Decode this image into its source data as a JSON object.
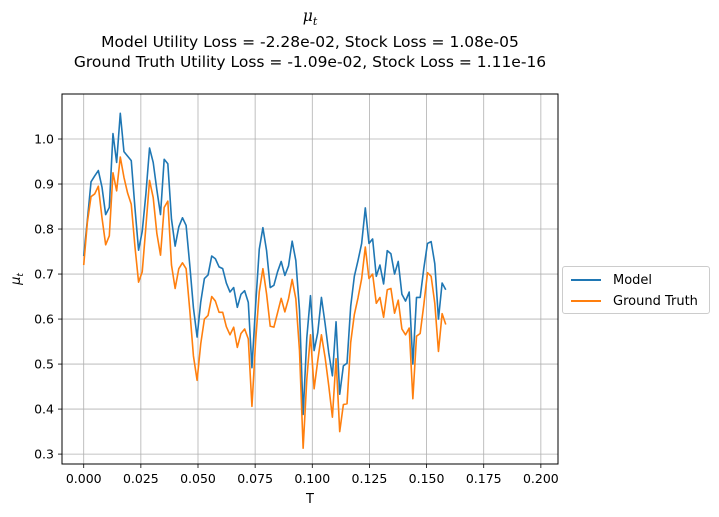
{
  "chart_data": {
    "type": "line",
    "title": {
      "symbol_base": "μ",
      "symbol_sub": "t",
      "line2": "Model Utility Loss = -2.28e-02, Stock Loss = 1.08e-05",
      "line3": "Ground Truth Utility Loss = -1.09e-02, Stock Loss = 1.11e-16"
    },
    "xlabel": "T",
    "ylabel": "μ_t",
    "ylabel_base": "μ",
    "ylabel_sub": "t",
    "xlim": [
      -0.0095,
      0.2075
    ],
    "ylim": [
      0.278,
      1.1
    ],
    "xticks": [
      0.0,
      0.025,
      0.05,
      0.075,
      0.1,
      0.125,
      0.15,
      0.175,
      0.2
    ],
    "xtick_labels": [
      "0.000",
      "0.025",
      "0.050",
      "0.075",
      "0.100",
      "0.125",
      "0.150",
      "0.175",
      "0.200"
    ],
    "yticks": [
      0.3,
      0.4,
      0.5,
      0.6,
      0.7,
      0.8,
      0.9,
      1.0
    ],
    "ytick_labels": [
      "0.3",
      "0.4",
      "0.5",
      "0.6",
      "0.7",
      "0.8",
      "0.9",
      "1.0"
    ],
    "grid": true,
    "legend_position": "right, outside",
    "series": [
      {
        "name": "Model",
        "color": "#1f77b4",
        "points": [
          [
            0.0,
            0.74
          ],
          [
            0.0016,
            0.82
          ],
          [
            0.0032,
            0.905
          ],
          [
            0.0048,
            0.918
          ],
          [
            0.0064,
            0.93
          ],
          [
            0.008,
            0.893
          ],
          [
            0.0096,
            0.832
          ],
          [
            0.0112,
            0.848
          ],
          [
            0.0128,
            1.012
          ],
          [
            0.0144,
            0.948
          ],
          [
            0.016,
            1.057
          ],
          [
            0.0176,
            0.972
          ],
          [
            0.0192,
            0.962
          ],
          [
            0.0208,
            0.952
          ],
          [
            0.0224,
            0.848
          ],
          [
            0.024,
            0.753
          ],
          [
            0.0256,
            0.795
          ],
          [
            0.0272,
            0.878
          ],
          [
            0.0288,
            0.98
          ],
          [
            0.0304,
            0.948
          ],
          [
            0.032,
            0.887
          ],
          [
            0.0336,
            0.832
          ],
          [
            0.0352,
            0.955
          ],
          [
            0.0368,
            0.945
          ],
          [
            0.0384,
            0.822
          ],
          [
            0.04,
            0.762
          ],
          [
            0.0416,
            0.805
          ],
          [
            0.0432,
            0.825
          ],
          [
            0.0448,
            0.808
          ],
          [
            0.0464,
            0.72
          ],
          [
            0.048,
            0.625
          ],
          [
            0.0496,
            0.56
          ],
          [
            0.0512,
            0.638
          ],
          [
            0.0528,
            0.69
          ],
          [
            0.0544,
            0.698
          ],
          [
            0.056,
            0.74
          ],
          [
            0.0576,
            0.734
          ],
          [
            0.0592,
            0.716
          ],
          [
            0.0608,
            0.712
          ],
          [
            0.0624,
            0.68
          ],
          [
            0.064,
            0.66
          ],
          [
            0.0656,
            0.67
          ],
          [
            0.0672,
            0.626
          ],
          [
            0.0688,
            0.655
          ],
          [
            0.0704,
            0.663
          ],
          [
            0.072,
            0.637
          ],
          [
            0.0736,
            0.492
          ],
          [
            0.0752,
            0.63
          ],
          [
            0.0768,
            0.755
          ],
          [
            0.0784,
            0.803
          ],
          [
            0.08,
            0.752
          ],
          [
            0.0816,
            0.67
          ],
          [
            0.0832,
            0.675
          ],
          [
            0.0848,
            0.705
          ],
          [
            0.0864,
            0.728
          ],
          [
            0.088,
            0.697
          ],
          [
            0.0896,
            0.718
          ],
          [
            0.0912,
            0.773
          ],
          [
            0.0928,
            0.73
          ],
          [
            0.0944,
            0.62
          ],
          [
            0.096,
            0.388
          ],
          [
            0.0976,
            0.558
          ],
          [
            0.0992,
            0.652
          ],
          [
            0.1008,
            0.53
          ],
          [
            0.1024,
            0.57
          ],
          [
            0.104,
            0.648
          ],
          [
            0.1056,
            0.59
          ],
          [
            0.1072,
            0.525
          ],
          [
            0.1088,
            0.474
          ],
          [
            0.1104,
            0.594
          ],
          [
            0.112,
            0.433
          ],
          [
            0.1136,
            0.496
          ],
          [
            0.1152,
            0.502
          ],
          [
            0.1168,
            0.628
          ],
          [
            0.1184,
            0.695
          ],
          [
            0.12,
            0.73
          ],
          [
            0.1216,
            0.768
          ],
          [
            0.1232,
            0.847
          ],
          [
            0.1248,
            0.768
          ],
          [
            0.1264,
            0.778
          ],
          [
            0.128,
            0.695
          ],
          [
            0.1296,
            0.72
          ],
          [
            0.1312,
            0.678
          ],
          [
            0.1328,
            0.752
          ],
          [
            0.1344,
            0.745
          ],
          [
            0.136,
            0.7
          ],
          [
            0.1376,
            0.728
          ],
          [
            0.1392,
            0.655
          ],
          [
            0.1408,
            0.64
          ],
          [
            0.1424,
            0.66
          ],
          [
            0.144,
            0.5
          ],
          [
            0.1456,
            0.648
          ],
          [
            0.1472,
            0.648
          ],
          [
            0.1488,
            0.713
          ],
          [
            0.1504,
            0.768
          ],
          [
            0.152,
            0.772
          ],
          [
            0.1536,
            0.723
          ],
          [
            0.1552,
            0.6
          ],
          [
            0.1568,
            0.68
          ],
          [
            0.1584,
            0.665
          ]
        ]
      },
      {
        "name": "Ground Truth",
        "color": "#ff7f0e",
        "points": [
          [
            0.0,
            0.72
          ],
          [
            0.0016,
            0.815
          ],
          [
            0.0032,
            0.872
          ],
          [
            0.0048,
            0.878
          ],
          [
            0.0064,
            0.895
          ],
          [
            0.008,
            0.825
          ],
          [
            0.0096,
            0.765
          ],
          [
            0.0112,
            0.785
          ],
          [
            0.0128,
            0.925
          ],
          [
            0.0144,
            0.885
          ],
          [
            0.016,
            0.96
          ],
          [
            0.0176,
            0.915
          ],
          [
            0.0192,
            0.88
          ],
          [
            0.0208,
            0.855
          ],
          [
            0.0224,
            0.762
          ],
          [
            0.024,
            0.682
          ],
          [
            0.0256,
            0.705
          ],
          [
            0.0272,
            0.805
          ],
          [
            0.0288,
            0.908
          ],
          [
            0.0304,
            0.87
          ],
          [
            0.032,
            0.79
          ],
          [
            0.0336,
            0.742
          ],
          [
            0.0352,
            0.848
          ],
          [
            0.0368,
            0.862
          ],
          [
            0.0384,
            0.72
          ],
          [
            0.04,
            0.668
          ],
          [
            0.0416,
            0.712
          ],
          [
            0.0432,
            0.725
          ],
          [
            0.0448,
            0.712
          ],
          [
            0.0464,
            0.62
          ],
          [
            0.048,
            0.518
          ],
          [
            0.0496,
            0.464
          ],
          [
            0.0512,
            0.545
          ],
          [
            0.0528,
            0.6
          ],
          [
            0.0544,
            0.608
          ],
          [
            0.056,
            0.65
          ],
          [
            0.0576,
            0.64
          ],
          [
            0.0592,
            0.615
          ],
          [
            0.0608,
            0.615
          ],
          [
            0.0624,
            0.583
          ],
          [
            0.064,
            0.565
          ],
          [
            0.0656,
            0.582
          ],
          [
            0.0672,
            0.537
          ],
          [
            0.0688,
            0.568
          ],
          [
            0.0704,
            0.578
          ],
          [
            0.072,
            0.556
          ],
          [
            0.0736,
            0.406
          ],
          [
            0.0752,
            0.55
          ],
          [
            0.0768,
            0.66
          ],
          [
            0.0784,
            0.712
          ],
          [
            0.08,
            0.656
          ],
          [
            0.0816,
            0.584
          ],
          [
            0.0832,
            0.582
          ],
          [
            0.0848,
            0.614
          ],
          [
            0.0864,
            0.646
          ],
          [
            0.088,
            0.616
          ],
          [
            0.0896,
            0.645
          ],
          [
            0.0912,
            0.688
          ],
          [
            0.0928,
            0.645
          ],
          [
            0.0944,
            0.53
          ],
          [
            0.096,
            0.313
          ],
          [
            0.0976,
            0.466
          ],
          [
            0.0992,
            0.565
          ],
          [
            0.1008,
            0.445
          ],
          [
            0.1024,
            0.508
          ],
          [
            0.104,
            0.565
          ],
          [
            0.1056,
            0.515
          ],
          [
            0.1072,
            0.452
          ],
          [
            0.1088,
            0.382
          ],
          [
            0.1104,
            0.512
          ],
          [
            0.112,
            0.35
          ],
          [
            0.1136,
            0.41
          ],
          [
            0.1152,
            0.412
          ],
          [
            0.1168,
            0.548
          ],
          [
            0.1184,
            0.61
          ],
          [
            0.12,
            0.647
          ],
          [
            0.1216,
            0.69
          ],
          [
            0.1232,
            0.76
          ],
          [
            0.1248,
            0.69
          ],
          [
            0.1264,
            0.7
          ],
          [
            0.128,
            0.635
          ],
          [
            0.1296,
            0.648
          ],
          [
            0.1312,
            0.604
          ],
          [
            0.1328,
            0.665
          ],
          [
            0.1344,
            0.668
          ],
          [
            0.136,
            0.613
          ],
          [
            0.1376,
            0.642
          ],
          [
            0.1392,
            0.578
          ],
          [
            0.1408,
            0.565
          ],
          [
            0.1424,
            0.58
          ],
          [
            0.144,
            0.423
          ],
          [
            0.1456,
            0.562
          ],
          [
            0.1472,
            0.568
          ],
          [
            0.1488,
            0.632
          ],
          [
            0.1504,
            0.703
          ],
          [
            0.152,
            0.695
          ],
          [
            0.1536,
            0.635
          ],
          [
            0.1552,
            0.528
          ],
          [
            0.1568,
            0.612
          ],
          [
            0.1584,
            0.588
          ]
        ]
      }
    ]
  }
}
